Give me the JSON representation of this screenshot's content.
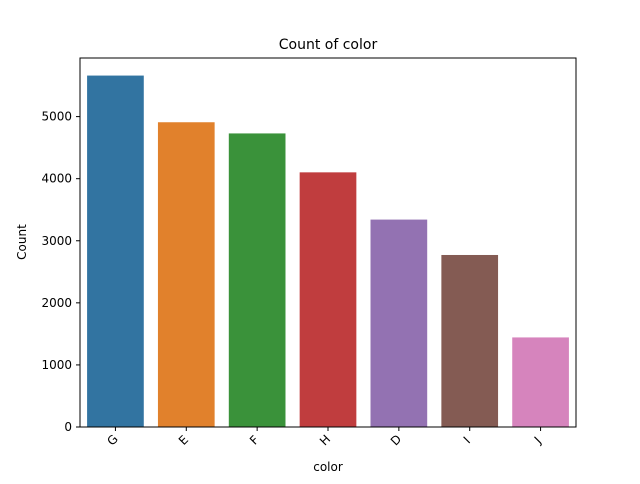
{
  "chart_data": {
    "type": "bar",
    "title": "Count of color",
    "xlabel": "color",
    "ylabel": "Count",
    "categories": [
      "G",
      "E",
      "F",
      "H",
      "D",
      "I",
      "J"
    ],
    "values": [
      5661,
      4909,
      4729,
      4102,
      3341,
      2771,
      1443
    ],
    "colors": [
      "#3274a1",
      "#e1812c",
      "#3a923a",
      "#c03d3e",
      "#9372b2",
      "#845b53",
      "#d684bd"
    ],
    "ylim": [
      0,
      5944
    ],
    "yticks": [
      0,
      1000,
      2000,
      3000,
      4000,
      5000
    ],
    "grid": false,
    "legend": "none"
  }
}
